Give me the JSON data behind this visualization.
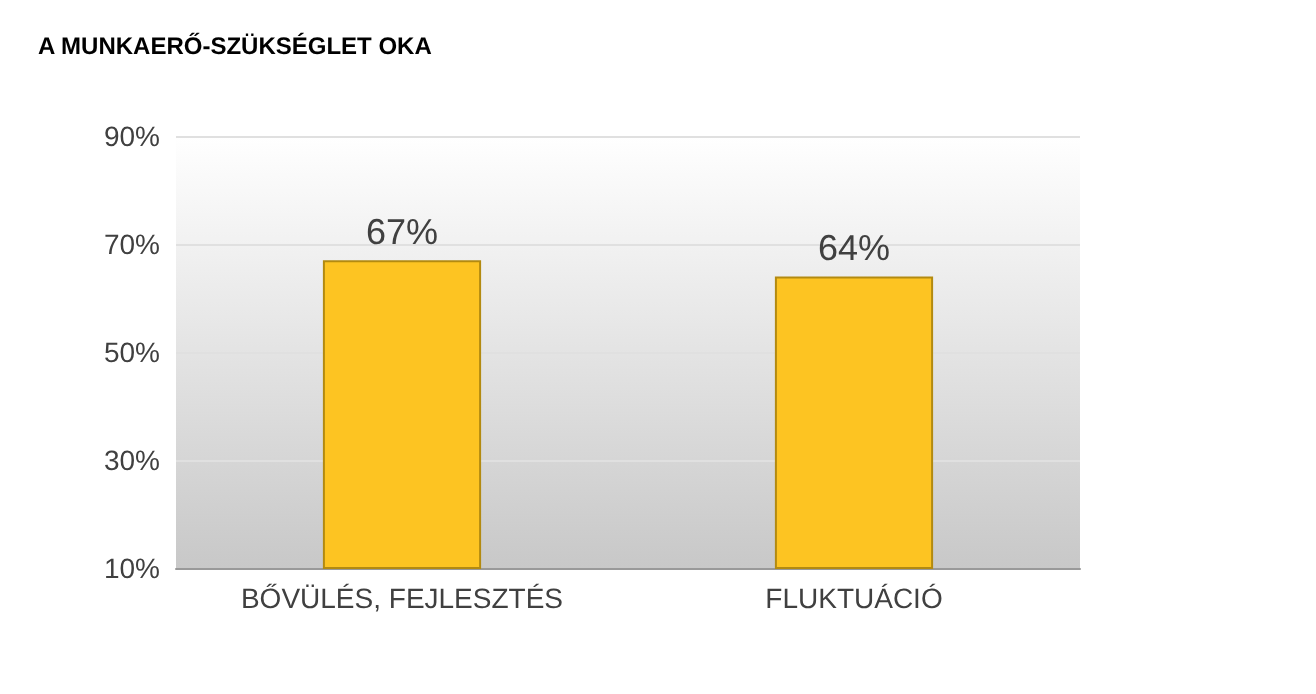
{
  "chart_data": {
    "type": "bar",
    "title": "A MUNKAERŐ-SZÜKSÉGLET OKA",
    "categories": [
      "BŐVÜLÉS, FEJLESZTÉS",
      "FLUKTUÁCIÓ"
    ],
    "values": [
      67,
      64
    ],
    "value_labels": [
      "67%",
      "64%"
    ],
    "color": "#fdc422",
    "ylim": [
      10,
      90
    ],
    "yticks": [
      {
        "value": 10,
        "label": "10%"
      },
      {
        "value": 30,
        "label": "30%"
      },
      {
        "value": 50,
        "label": "50%"
      },
      {
        "value": 70,
        "label": "70%"
      },
      {
        "value": 90,
        "label": "90%"
      }
    ],
    "grid": "y"
  }
}
